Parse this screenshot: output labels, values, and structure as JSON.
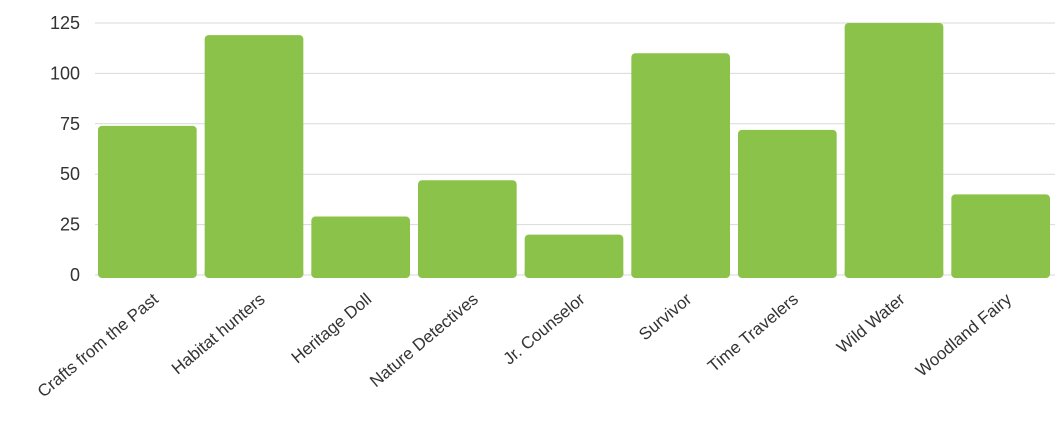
{
  "chart_data": {
    "type": "bar",
    "categories": [
      "Crafts from the Past",
      "Habitat hunters",
      "Heritage Doll",
      "Nature Detectives",
      "Jr. Counselor",
      "Survivor",
      "Time Travelers",
      "Wild Water",
      "Woodland Fairy"
    ],
    "values": [
      74,
      119,
      29,
      47,
      20,
      110,
      72,
      125,
      40
    ],
    "title": "",
    "xlabel": "",
    "ylabel": "",
    "ylim": [
      0,
      125
    ],
    "yticks": [
      0,
      25,
      50,
      75,
      100,
      125
    ],
    "grid": true,
    "legend": "none",
    "bar_color": "#8bc34a",
    "grid_color": "#d9d9d9"
  }
}
